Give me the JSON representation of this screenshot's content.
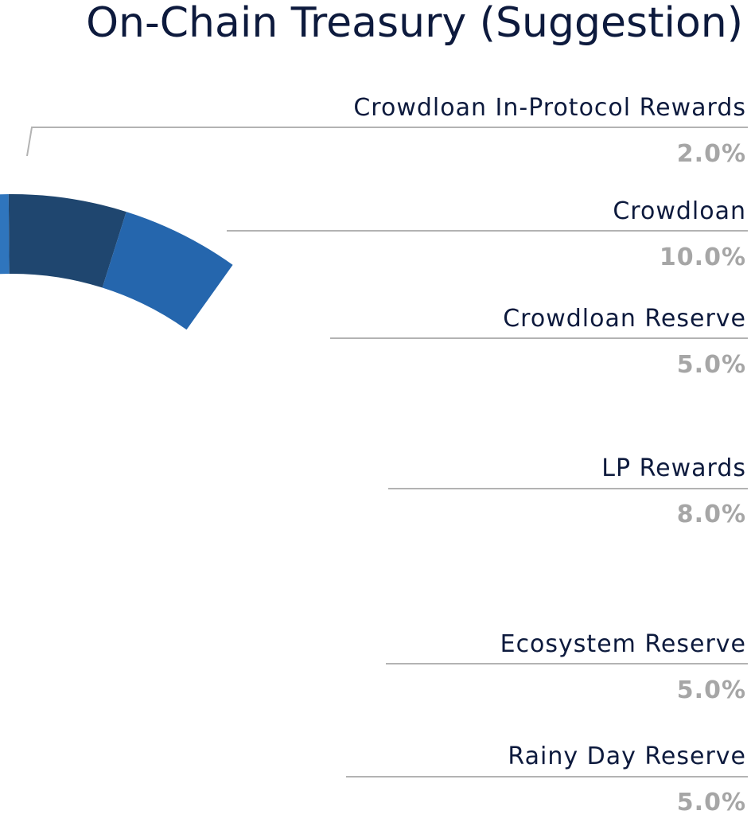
{
  "chart_data": {
    "type": "pie",
    "title": "On-Chain Treasury (Suggestion)",
    "slices": [
      {
        "label": "Crowdloan In-Protocol Rewards",
        "value": 2.0,
        "value_label": "2.0%",
        "color": "#3a4a85"
      },
      {
        "label": "Crowdloan",
        "value": 10.0,
        "value_label": "10.0%",
        "color": "#6b9ecb"
      },
      {
        "label": "Crowdloan Reserve",
        "value": 5.0,
        "value_label": "5.0%",
        "color": "#24619e"
      },
      {
        "label": "LP Rewards",
        "value": 8.0,
        "value_label": "8.0%",
        "color": "#2f75bd"
      },
      {
        "label": "Ecosystem Reserve",
        "value": 5.0,
        "value_label": "5.0%",
        "color": "#1f466f"
      },
      {
        "label": "Rainy Day Reserve",
        "value": 5.0,
        "value_label": "5.0%",
        "color": "#2566ad"
      }
    ],
    "legend": "right",
    "style": "partial-donut"
  }
}
